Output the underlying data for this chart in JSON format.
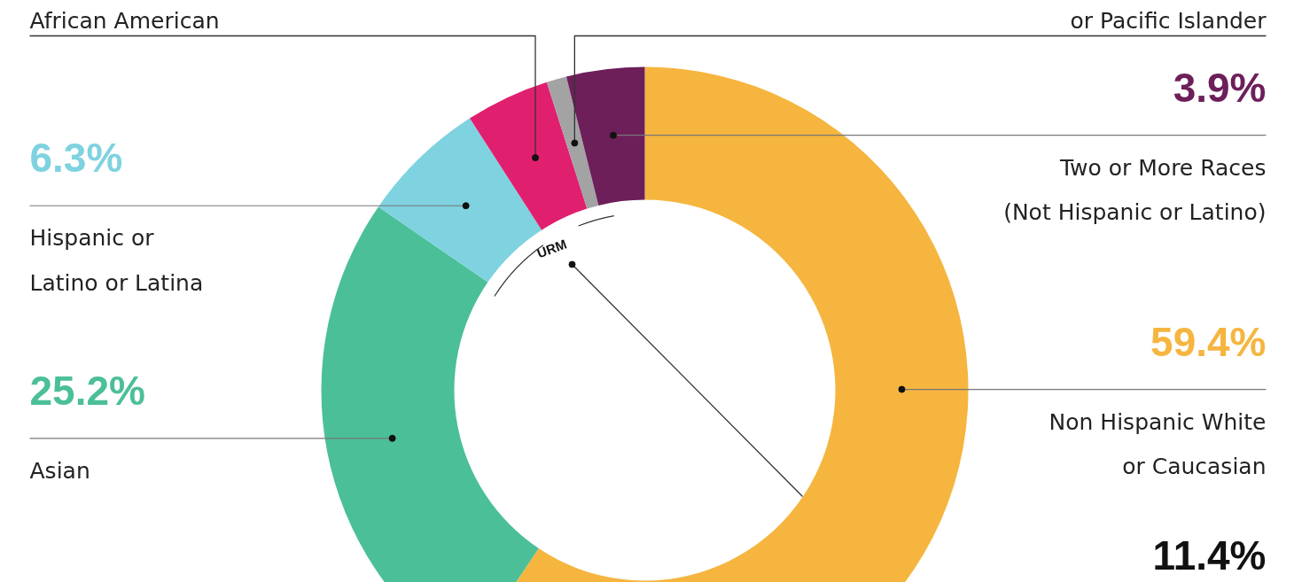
{
  "chart_data": {
    "type": "donut",
    "categories": [
      "Non Hispanic White\nor Caucasian",
      "Asian",
      "Hispanic or\nLatino or Latina",
      "African American",
      "or Pacific Islander",
      "Two or More Races\n(Not Hispanic or Latino)"
    ],
    "values": [
      59.4,
      25.2,
      6.3,
      4.2,
      1.0,
      3.9
    ],
    "colors": [
      "#f5b53f",
      "#4bbf98",
      "#7fd2e0",
      "#e0206f",
      "#a3a3a3",
      "#6d1f5a"
    ],
    "value_labels": [
      "59.4%",
      "25.2%",
      "6.3%",
      null,
      null,
      "3.9%"
    ],
    "annotations": [
      "URM",
      "11.4%"
    ]
  }
}
